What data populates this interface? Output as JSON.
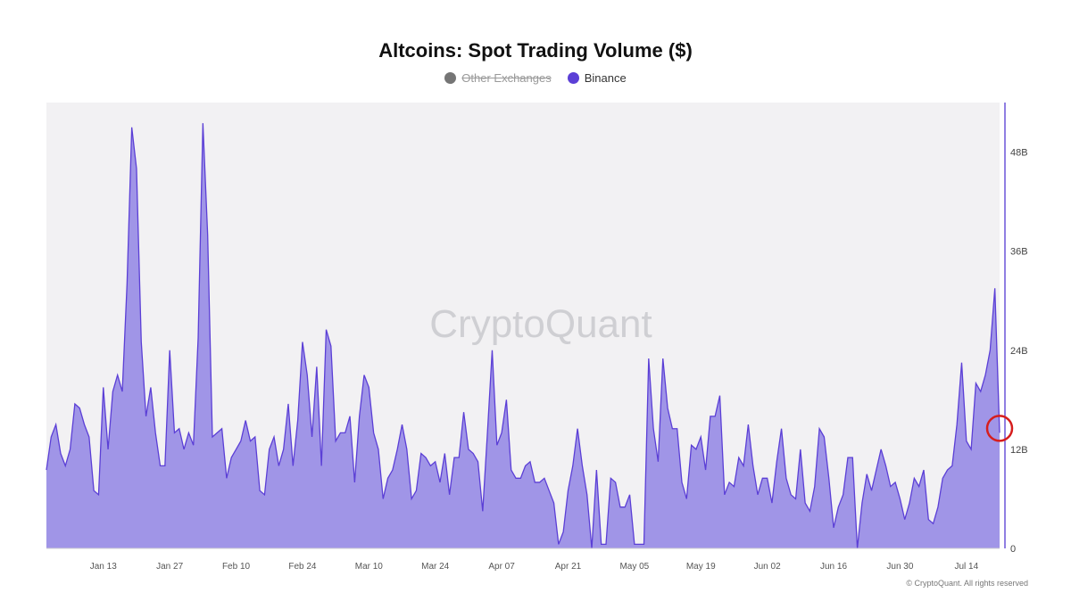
{
  "chart_data": {
    "type": "area",
    "title": "Altcoins: Spot Trading Volume ($)",
    "legend": [
      {
        "name": "Other Exchanges",
        "color": "#757575",
        "enabled": false
      },
      {
        "name": "Binance",
        "color": "#5b3fd6",
        "enabled": true
      }
    ],
    "watermark": "CryptoQuant",
    "copyright": "© CryptoQuant. All rights reserved",
    "x_ticks": [
      "Jan 13",
      "Jan 27",
      "Feb 10",
      "Feb 24",
      "Mar 10",
      "Mar 24",
      "Apr 07",
      "Apr 21",
      "May 05",
      "May 19",
      "Jun 02",
      "Jun 16",
      "Jun 30",
      "Jul 14"
    ],
    "x_tick_days": [
      12,
      26,
      40,
      54,
      68,
      82,
      96,
      110,
      124,
      138,
      152,
      166,
      180,
      194
    ],
    "y_ticks": [
      "0",
      "12B",
      "24B",
      "36B",
      "48B"
    ],
    "y_tick_values": [
      0,
      12,
      24,
      36,
      48
    ],
    "ylim": [
      0,
      54
    ],
    "y_unit": "B",
    "axis_position": "right",
    "fill_color": "#9b8fe6",
    "line_color": "#5b3fd6",
    "highlight_color": "#d61e1e",
    "highlight_index": 201,
    "series": [
      {
        "name": "Binance",
        "start_date": "2025-01-01",
        "values": [
          9.5,
          13.5,
          15.0,
          11.5,
          10.0,
          12.0,
          17.5,
          17.0,
          15.0,
          13.5,
          7.0,
          6.5,
          19.5,
          12.0,
          19.0,
          21.0,
          19.0,
          32.0,
          51.0,
          46.0,
          25.0,
          16.0,
          19.5,
          14.0,
          10.0,
          10.0,
          24.0,
          14.0,
          14.5,
          12.0,
          14.0,
          12.5,
          25.5,
          51.5,
          38.0,
          13.5,
          14.0,
          14.5,
          8.5,
          11.0,
          12.0,
          13.0,
          15.5,
          13.0,
          13.5,
          7.0,
          6.5,
          12.0,
          13.5,
          10.0,
          12.0,
          17.5,
          10.0,
          15.5,
          25.0,
          21.0,
          13.5,
          22.0,
          10.0,
          26.5,
          24.5,
          13.0,
          14.0,
          14.0,
          16.0,
          8.0,
          16.0,
          21.0,
          19.5,
          14.0,
          12.0,
          6.0,
          8.5,
          9.5,
          12.0,
          15.0,
          12.0,
          6.0,
          7.0,
          11.5,
          11.0,
          10.0,
          10.5,
          8.0,
          11.5,
          6.5,
          11.0,
          11.0,
          16.5,
          12.0,
          11.5,
          10.5,
          4.5,
          14.0,
          24.0,
          12.5,
          14.0,
          18.0,
          9.5,
          8.5,
          8.5,
          10.0,
          10.5,
          8.0,
          8.0,
          8.5,
          7.0,
          5.5,
          0.5,
          2.0,
          7.0,
          10.0,
          14.5,
          10.0,
          6.5,
          0.0,
          9.5,
          0.5,
          0.5,
          8.5,
          8.0,
          5.0,
          5.0,
          6.5,
          0.5,
          0.5,
          0.5,
          23.0,
          14.5,
          10.5,
          23.0,
          17.0,
          14.5,
          14.5,
          8.0,
          6.0,
          12.5,
          12.0,
          13.5,
          9.5,
          16.0,
          16.0,
          18.5,
          6.5,
          8.0,
          7.5,
          11.0,
          10.0,
          15.0,
          10.0,
          6.5,
          8.5,
          8.5,
          5.5,
          10.5,
          14.5,
          8.5,
          6.5,
          6.0,
          12.0,
          5.5,
          4.5,
          7.5,
          14.5,
          13.5,
          8.5,
          2.5,
          5.0,
          6.5,
          11.0,
          11.0,
          0.0,
          5.5,
          9.0,
          7.0,
          9.5,
          12.0,
          10.0,
          7.5,
          8.0,
          6.0,
          3.5,
          5.5,
          8.5,
          7.5,
          9.5,
          3.5,
          3.0,
          5.0,
          8.5,
          9.5,
          10.0,
          15.0,
          22.5,
          13.0,
          12.0,
          20.0,
          19.0,
          21.0,
          24.0,
          31.5,
          14.0
        ]
      }
    ]
  }
}
